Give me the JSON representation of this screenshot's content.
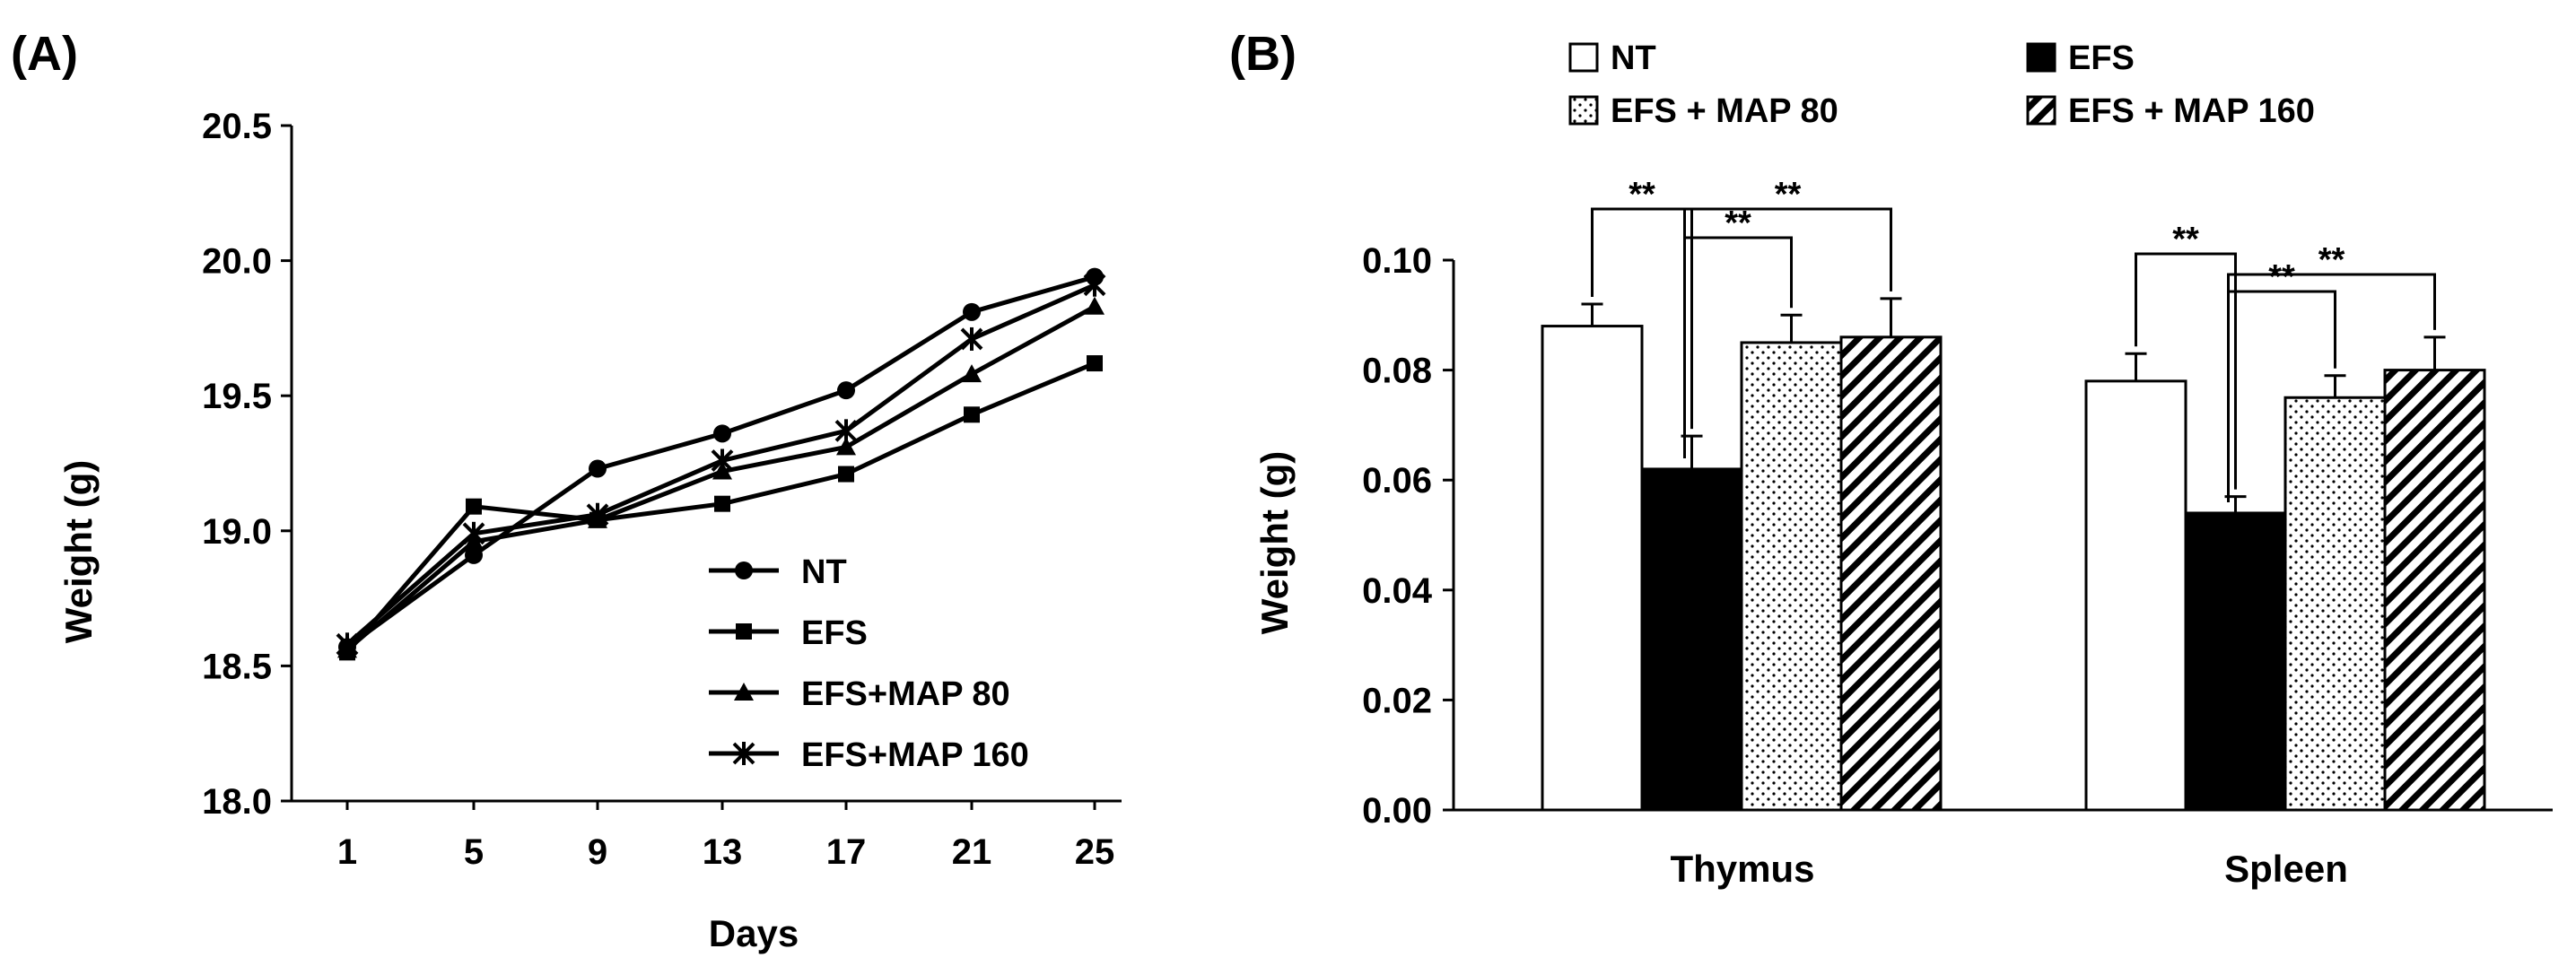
{
  "chart_data": [
    {
      "panel_label": "(A)",
      "type": "line",
      "xlabel": "Days",
      "ylabel": "Weight (g)",
      "x": [
        1,
        5,
        9,
        13,
        17,
        21,
        25
      ],
      "x_tick_labels": [
        "1",
        "5",
        "9",
        "13",
        "17",
        "21",
        "25"
      ],
      "ylim": [
        18.0,
        20.5
      ],
      "y_ticks": [
        18.0,
        18.5,
        19.0,
        19.5,
        20.0,
        20.5
      ],
      "y_tick_labels": [
        "18.0",
        "18.5",
        "19.0",
        "19.5",
        "20.0",
        "20.5"
      ],
      "grid": false,
      "legend_position": "lower-right",
      "series": [
        {
          "name": "NT",
          "marker": "circle",
          "values": [
            18.57,
            18.91,
            19.23,
            19.36,
            19.52,
            19.81,
            19.94
          ]
        },
        {
          "name": "EFS",
          "marker": "square",
          "values": [
            18.55,
            19.09,
            19.04,
            19.1,
            19.21,
            19.43,
            19.62
          ]
        },
        {
          "name": "EFS+MAP 80",
          "marker": "triangle",
          "values": [
            18.56,
            18.96,
            19.04,
            19.22,
            19.31,
            19.58,
            19.83
          ]
        },
        {
          "name": "EFS+MAP 160",
          "marker": "asterisk",
          "values": [
            18.58,
            18.99,
            19.06,
            19.26,
            19.37,
            19.71,
            19.91
          ]
        }
      ]
    },
    {
      "panel_label": "(B)",
      "type": "bar",
      "ylabel": "Weight (g)",
      "categories": [
        "Thymus",
        "Spleen"
      ],
      "ylim": [
        0.0,
        0.1
      ],
      "y_ticks": [
        0.0,
        0.02,
        0.04,
        0.06,
        0.08,
        0.1
      ],
      "y_tick_labels": [
        "0.00",
        "0.02",
        "0.04",
        "0.06",
        "0.08",
        "0.10"
      ],
      "grid": false,
      "legend_position": "top",
      "series": [
        {
          "name": "NT",
          "pattern": "white",
          "values": [
            0.088,
            0.078
          ],
          "errors": [
            0.004,
            0.005
          ]
        },
        {
          "name": "EFS",
          "pattern": "black",
          "values": [
            0.062,
            0.054
          ],
          "errors": [
            0.006,
            0.003
          ]
        },
        {
          "name": "EFS + MAP 80",
          "pattern": "dots",
          "values": [
            0.085,
            0.075
          ],
          "errors": [
            0.005,
            0.004
          ]
        },
        {
          "name": "EFS + MAP 160",
          "pattern": "hatch",
          "values": [
            0.086,
            0.08
          ],
          "errors": [
            0.007,
            0.006
          ]
        }
      ],
      "significance": [
        {
          "category": "Thymus",
          "from": "NT",
          "to": "EFS",
          "label": "**"
        },
        {
          "category": "Thymus",
          "from": "EFS",
          "to": "EFS + MAP 80",
          "label": "**"
        },
        {
          "category": "Thymus",
          "from": "EFS",
          "to": "EFS + MAP 160",
          "label": "**"
        },
        {
          "category": "Spleen",
          "from": "NT",
          "to": "EFS",
          "label": "**"
        },
        {
          "category": "Spleen",
          "from": "EFS",
          "to": "EFS + MAP 80",
          "label": "**"
        },
        {
          "category": "Spleen",
          "from": "EFS",
          "to": "EFS + MAP 160",
          "label": "**"
        }
      ]
    }
  ]
}
